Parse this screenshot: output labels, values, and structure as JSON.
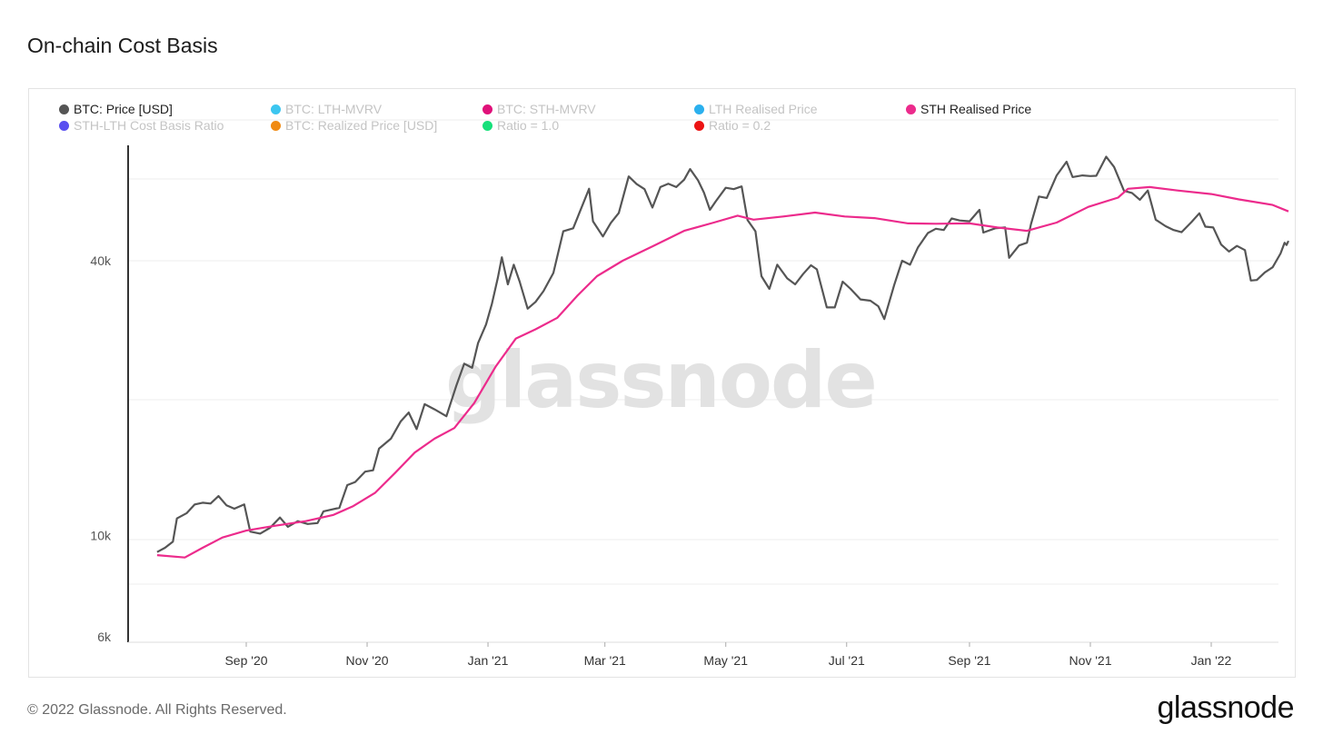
{
  "title": "On-chain Cost Basis",
  "legend": [
    {
      "label": "BTC: Price [USD]",
      "color": "#555555",
      "active": true
    },
    {
      "label": "BTC: LTH-MVRV",
      "color": "#3cc6f0",
      "active": false
    },
    {
      "label": "BTC: STH-MVRV",
      "color": "#e0117a",
      "active": false
    },
    {
      "label": "LTH Realised Price",
      "color": "#2bb0ee",
      "active": false
    },
    {
      "label": "STH Realised Price",
      "color": "#ec2b8c",
      "active": true
    },
    {
      "label": "STH-LTH Cost Basis Ratio",
      "color": "#5a4ff0",
      "active": false
    },
    {
      "label": "BTC: Realized Price [USD]",
      "color": "#f08a12",
      "active": false
    },
    {
      "label": "Ratio = 1.0",
      "color": "#16e07a",
      "active": false
    },
    {
      "label": "Ratio = 0.2",
      "color": "#ec1313",
      "active": false
    }
  ],
  "watermark": "glassnode",
  "footer": "© 2022 Glassnode. All Rights Reserved.",
  "brand": "glassnode",
  "chart_data": {
    "type": "line",
    "title": "On-chain Cost Basis",
    "y_scale": "log",
    "ylim": [
      6000,
      80000
    ],
    "y_ticks": [
      {
        "value": 6000,
        "label": "6k"
      },
      {
        "value": 10000,
        "label": "10k"
      },
      {
        "value": 40000,
        "label": "40k"
      }
    ],
    "x_range": [
      "2020-07-18",
      "2022-02-09"
    ],
    "x_ticks": [
      {
        "date": "2020-09-01",
        "label": "Sep '20"
      },
      {
        "date": "2020-11-01",
        "label": "Nov '20"
      },
      {
        "date": "2021-01-01",
        "label": "Jan '21"
      },
      {
        "date": "2021-03-01",
        "label": "Mar '21"
      },
      {
        "date": "2021-05-01",
        "label": "May '21"
      },
      {
        "date": "2021-07-01",
        "label": "Jul '21"
      },
      {
        "date": "2021-09-01",
        "label": "Sep '21"
      },
      {
        "date": "2021-11-01",
        "label": "Nov '21"
      },
      {
        "date": "2022-01-01",
        "label": "Jan '22"
      }
    ],
    "grid": true,
    "series": [
      {
        "name": "BTC: Price [USD]",
        "color": "#555555",
        "points": [
          [
            "2020-07-18",
            9200
          ],
          [
            "2020-07-22",
            9400
          ],
          [
            "2020-07-26",
            9700
          ],
          [
            "2020-07-28",
            10900
          ],
          [
            "2020-08-02",
            11200
          ],
          [
            "2020-08-06",
            11700
          ],
          [
            "2020-08-10",
            11800
          ],
          [
            "2020-08-14",
            11750
          ],
          [
            "2020-08-18",
            12200
          ],
          [
            "2020-08-22",
            11650
          ],
          [
            "2020-08-26",
            11450
          ],
          [
            "2020-08-31",
            11700
          ],
          [
            "2020-09-03",
            10200
          ],
          [
            "2020-09-08",
            10100
          ],
          [
            "2020-09-13",
            10400
          ],
          [
            "2020-09-18",
            10950
          ],
          [
            "2020-09-22",
            10450
          ],
          [
            "2020-09-27",
            10750
          ],
          [
            "2020-10-02",
            10600
          ],
          [
            "2020-10-07",
            10650
          ],
          [
            "2020-10-10",
            11300
          ],
          [
            "2020-10-14",
            11400
          ],
          [
            "2020-10-18",
            11500
          ],
          [
            "2020-10-22",
            12900
          ],
          [
            "2020-10-26",
            13100
          ],
          [
            "2020-10-31",
            13800
          ],
          [
            "2020-11-04",
            13900
          ],
          [
            "2020-11-07",
            15500
          ],
          [
            "2020-11-13",
            16300
          ],
          [
            "2020-11-18",
            17800
          ],
          [
            "2020-11-22",
            18600
          ],
          [
            "2020-11-26",
            17100
          ],
          [
            "2020-11-30",
            19400
          ],
          [
            "2020-12-05",
            18900
          ],
          [
            "2020-12-11",
            18250
          ],
          [
            "2020-12-16",
            21300
          ],
          [
            "2020-12-20",
            23800
          ],
          [
            "2020-12-24",
            23300
          ],
          [
            "2020-12-27",
            26400
          ],
          [
            "2020-12-31",
            29000
          ],
          [
            "2021-01-03",
            32200
          ],
          [
            "2021-01-06",
            36700
          ],
          [
            "2021-01-08",
            40700
          ],
          [
            "2021-01-11",
            35500
          ],
          [
            "2021-01-14",
            39200
          ],
          [
            "2021-01-17",
            36000
          ],
          [
            "2021-01-21",
            31400
          ],
          [
            "2021-01-25",
            32500
          ],
          [
            "2021-01-29",
            34300
          ],
          [
            "2021-02-03",
            37600
          ],
          [
            "2021-02-08",
            46400
          ],
          [
            "2021-02-13",
            47100
          ],
          [
            "2021-02-17",
            52000
          ],
          [
            "2021-02-21",
            57500
          ],
          [
            "2021-02-23",
            48800
          ],
          [
            "2021-02-28",
            45200
          ],
          [
            "2021-03-04",
            48400
          ],
          [
            "2021-03-08",
            50900
          ],
          [
            "2021-03-13",
            61200
          ],
          [
            "2021-03-17",
            58900
          ],
          [
            "2021-03-21",
            57400
          ],
          [
            "2021-03-25",
            52300
          ],
          [
            "2021-03-29",
            58000
          ],
          [
            "2021-04-02",
            59000
          ],
          [
            "2021-04-06",
            58000
          ],
          [
            "2021-04-10",
            60200
          ],
          [
            "2021-04-13",
            63500
          ],
          [
            "2021-04-17",
            60000
          ],
          [
            "2021-04-20",
            56400
          ],
          [
            "2021-04-23",
            51700
          ],
          [
            "2021-04-26",
            54000
          ],
          [
            "2021-05-01",
            57800
          ],
          [
            "2021-05-05",
            57400
          ],
          [
            "2021-05-09",
            58200
          ],
          [
            "2021-05-12",
            49100
          ],
          [
            "2021-05-16",
            46400
          ],
          [
            "2021-05-19",
            37000
          ],
          [
            "2021-05-23",
            34700
          ],
          [
            "2021-05-27",
            39200
          ],
          [
            "2021-06-01",
            36600
          ],
          [
            "2021-06-05",
            35500
          ],
          [
            "2021-06-09",
            37400
          ],
          [
            "2021-06-13",
            39100
          ],
          [
            "2021-06-16",
            38300
          ],
          [
            "2021-06-21",
            31600
          ],
          [
            "2021-06-25",
            31600
          ],
          [
            "2021-06-29",
            36000
          ],
          [
            "2021-07-03",
            34700
          ],
          [
            "2021-07-08",
            32900
          ],
          [
            "2021-07-13",
            32700
          ],
          [
            "2021-07-17",
            31800
          ],
          [
            "2021-07-20",
            29800
          ],
          [
            "2021-07-25",
            35400
          ],
          [
            "2021-07-29",
            40000
          ],
          [
            "2021-08-02",
            39200
          ],
          [
            "2021-08-06",
            42800
          ],
          [
            "2021-08-11",
            46000
          ],
          [
            "2021-08-15",
            47000
          ],
          [
            "2021-08-19",
            46700
          ],
          [
            "2021-08-23",
            49500
          ],
          [
            "2021-08-27",
            49000
          ],
          [
            "2021-09-01",
            48800
          ],
          [
            "2021-09-06",
            51700
          ],
          [
            "2021-09-08",
            46100
          ],
          [
            "2021-09-14",
            47100
          ],
          [
            "2021-09-19",
            47300
          ],
          [
            "2021-09-21",
            40600
          ],
          [
            "2021-09-26",
            43200
          ],
          [
            "2021-09-30",
            43800
          ],
          [
            "2021-10-02",
            48100
          ],
          [
            "2021-10-06",
            55300
          ],
          [
            "2021-10-10",
            54900
          ],
          [
            "2021-10-15",
            61500
          ],
          [
            "2021-10-20",
            65900
          ],
          [
            "2021-10-23",
            61000
          ],
          [
            "2021-10-28",
            61500
          ],
          [
            "2021-11-01",
            61300
          ],
          [
            "2021-11-04",
            61400
          ],
          [
            "2021-11-09",
            67600
          ],
          [
            "2021-11-13",
            64200
          ],
          [
            "2021-11-18",
            56900
          ],
          [
            "2021-11-22",
            56300
          ],
          [
            "2021-11-26",
            54400
          ],
          [
            "2021-11-30",
            57000
          ],
          [
            "2021-12-04",
            49200
          ],
          [
            "2021-12-09",
            47600
          ],
          [
            "2021-12-13",
            46700
          ],
          [
            "2021-12-17",
            46200
          ],
          [
            "2021-12-22",
            48600
          ],
          [
            "2021-12-26",
            50800
          ],
          [
            "2021-12-29",
            47500
          ],
          [
            "2022-01-02",
            47300
          ],
          [
            "2022-01-06",
            43400
          ],
          [
            "2022-01-10",
            41900
          ],
          [
            "2022-01-14",
            43100
          ],
          [
            "2022-01-18",
            42200
          ],
          [
            "2022-01-21",
            36200
          ],
          [
            "2022-01-24",
            36300
          ],
          [
            "2022-01-28",
            37700
          ],
          [
            "2022-02-01",
            38700
          ],
          [
            "2022-02-05",
            41500
          ],
          [
            "2022-02-07",
            43800
          ],
          [
            "2022-02-08",
            43300
          ],
          [
            "2022-02-09",
            44200
          ]
        ]
      },
      {
        "name": "STH Realised Price",
        "color": "#ec2b8c",
        "points": [
          [
            "2020-07-18",
            9060
          ],
          [
            "2020-08-01",
            8950
          ],
          [
            "2020-08-10",
            9400
          ],
          [
            "2020-08-20",
            9900
          ],
          [
            "2020-09-01",
            10250
          ],
          [
            "2020-09-15",
            10500
          ],
          [
            "2020-10-01",
            10750
          ],
          [
            "2020-10-15",
            11100
          ],
          [
            "2020-10-25",
            11600
          ],
          [
            "2020-11-05",
            12400
          ],
          [
            "2020-11-15",
            13700
          ],
          [
            "2020-11-25",
            15200
          ],
          [
            "2020-12-05",
            16300
          ],
          [
            "2020-12-15",
            17200
          ],
          [
            "2020-12-25",
            19500
          ],
          [
            "2021-01-05",
            23500
          ],
          [
            "2021-01-15",
            27000
          ],
          [
            "2021-01-25",
            28300
          ],
          [
            "2021-02-05",
            30000
          ],
          [
            "2021-02-15",
            33500
          ],
          [
            "2021-02-25",
            37000
          ],
          [
            "2021-03-10",
            40000
          ],
          [
            "2021-03-25",
            43000
          ],
          [
            "2021-04-10",
            46500
          ],
          [
            "2021-04-25",
            48500
          ],
          [
            "2021-05-07",
            50200
          ],
          [
            "2021-05-15",
            49200
          ],
          [
            "2021-05-30",
            50000
          ],
          [
            "2021-06-15",
            51000
          ],
          [
            "2021-06-30",
            50000
          ],
          [
            "2021-07-15",
            49600
          ],
          [
            "2021-08-01",
            48300
          ],
          [
            "2021-08-15",
            48200
          ],
          [
            "2021-09-01",
            48300
          ],
          [
            "2021-09-15",
            47300
          ],
          [
            "2021-09-30",
            46500
          ],
          [
            "2021-10-15",
            48500
          ],
          [
            "2021-10-31",
            52500
          ],
          [
            "2021-11-15",
            55000
          ],
          [
            "2021-11-20",
            57500
          ],
          [
            "2021-12-01",
            58000
          ],
          [
            "2021-12-15",
            57000
          ],
          [
            "2022-01-01",
            56000
          ],
          [
            "2022-01-15",
            54500
          ],
          [
            "2022-02-01",
            53000
          ],
          [
            "2022-02-09",
            51300
          ]
        ]
      }
    ]
  }
}
